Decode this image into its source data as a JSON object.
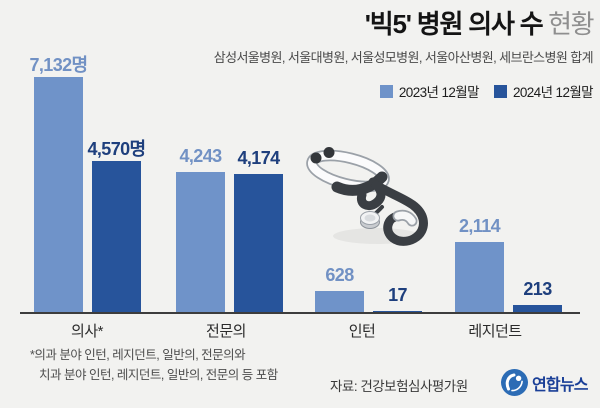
{
  "header": {
    "title_strong": "'빅5' 병원 의사 수",
    "title_light": " 현황",
    "subtitle": "삼성서울병원, 서울대병원, 서울성모병원, 서울아산병원, 세브란스병원 합계"
  },
  "legend": {
    "items": [
      {
        "label": "2023년 12월말",
        "color": "#6f93c9"
      },
      {
        "label": "2024년 12월말",
        "color": "#27549b"
      }
    ]
  },
  "chart_data": {
    "type": "bar",
    "title": "'빅5' 병원 의사 수 현황",
    "subtitle": "삼성서울병원, 서울대병원, 서울성모병원, 서울아산병원, 세브란스병원 합계",
    "categories": [
      "의사*",
      "전문의",
      "인턴",
      "레지던트"
    ],
    "series": [
      {
        "name": "2023년 12월말",
        "color": "#6f93c9",
        "label_color": "#7191c4",
        "values": [
          7132,
          4243,
          628,
          2114
        ],
        "labels": [
          "7,132명",
          "4,243",
          "628",
          "2,114"
        ]
      },
      {
        "name": "2024년 12월말",
        "color": "#27549b",
        "label_color": "#1e3f7d",
        "values": [
          4570,
          4174,
          17,
          213
        ],
        "labels": [
          "4,570명",
          "4,174",
          "17",
          "213"
        ]
      }
    ],
    "ylim": [
      0,
      7400
    ],
    "grid": false,
    "legend_position": "top-right"
  },
  "footer": {
    "footnote_line1": "*의과 분야 인턴, 레지던트, 일반의, 전문의와",
    "footnote_line2": "치과 분야 인턴, 레지던트, 일반의, 전문의 등 포함",
    "source": "자료: 건강보험심사평가원",
    "logo_text": "연합뉴스"
  },
  "icons": {
    "stethoscope": "stethoscope-illustration",
    "logo_mark": "yonhap-logo-mark"
  },
  "colors": {
    "background": "#f2f2f0",
    "bar_light": "#6f93c9",
    "bar_dark": "#27549b",
    "axis": "#3d3d3d",
    "title": "#141414",
    "title_light": "#8f8f8f",
    "logo_blue": "#2c6cb5",
    "logo_text": "#1a3f97"
  }
}
